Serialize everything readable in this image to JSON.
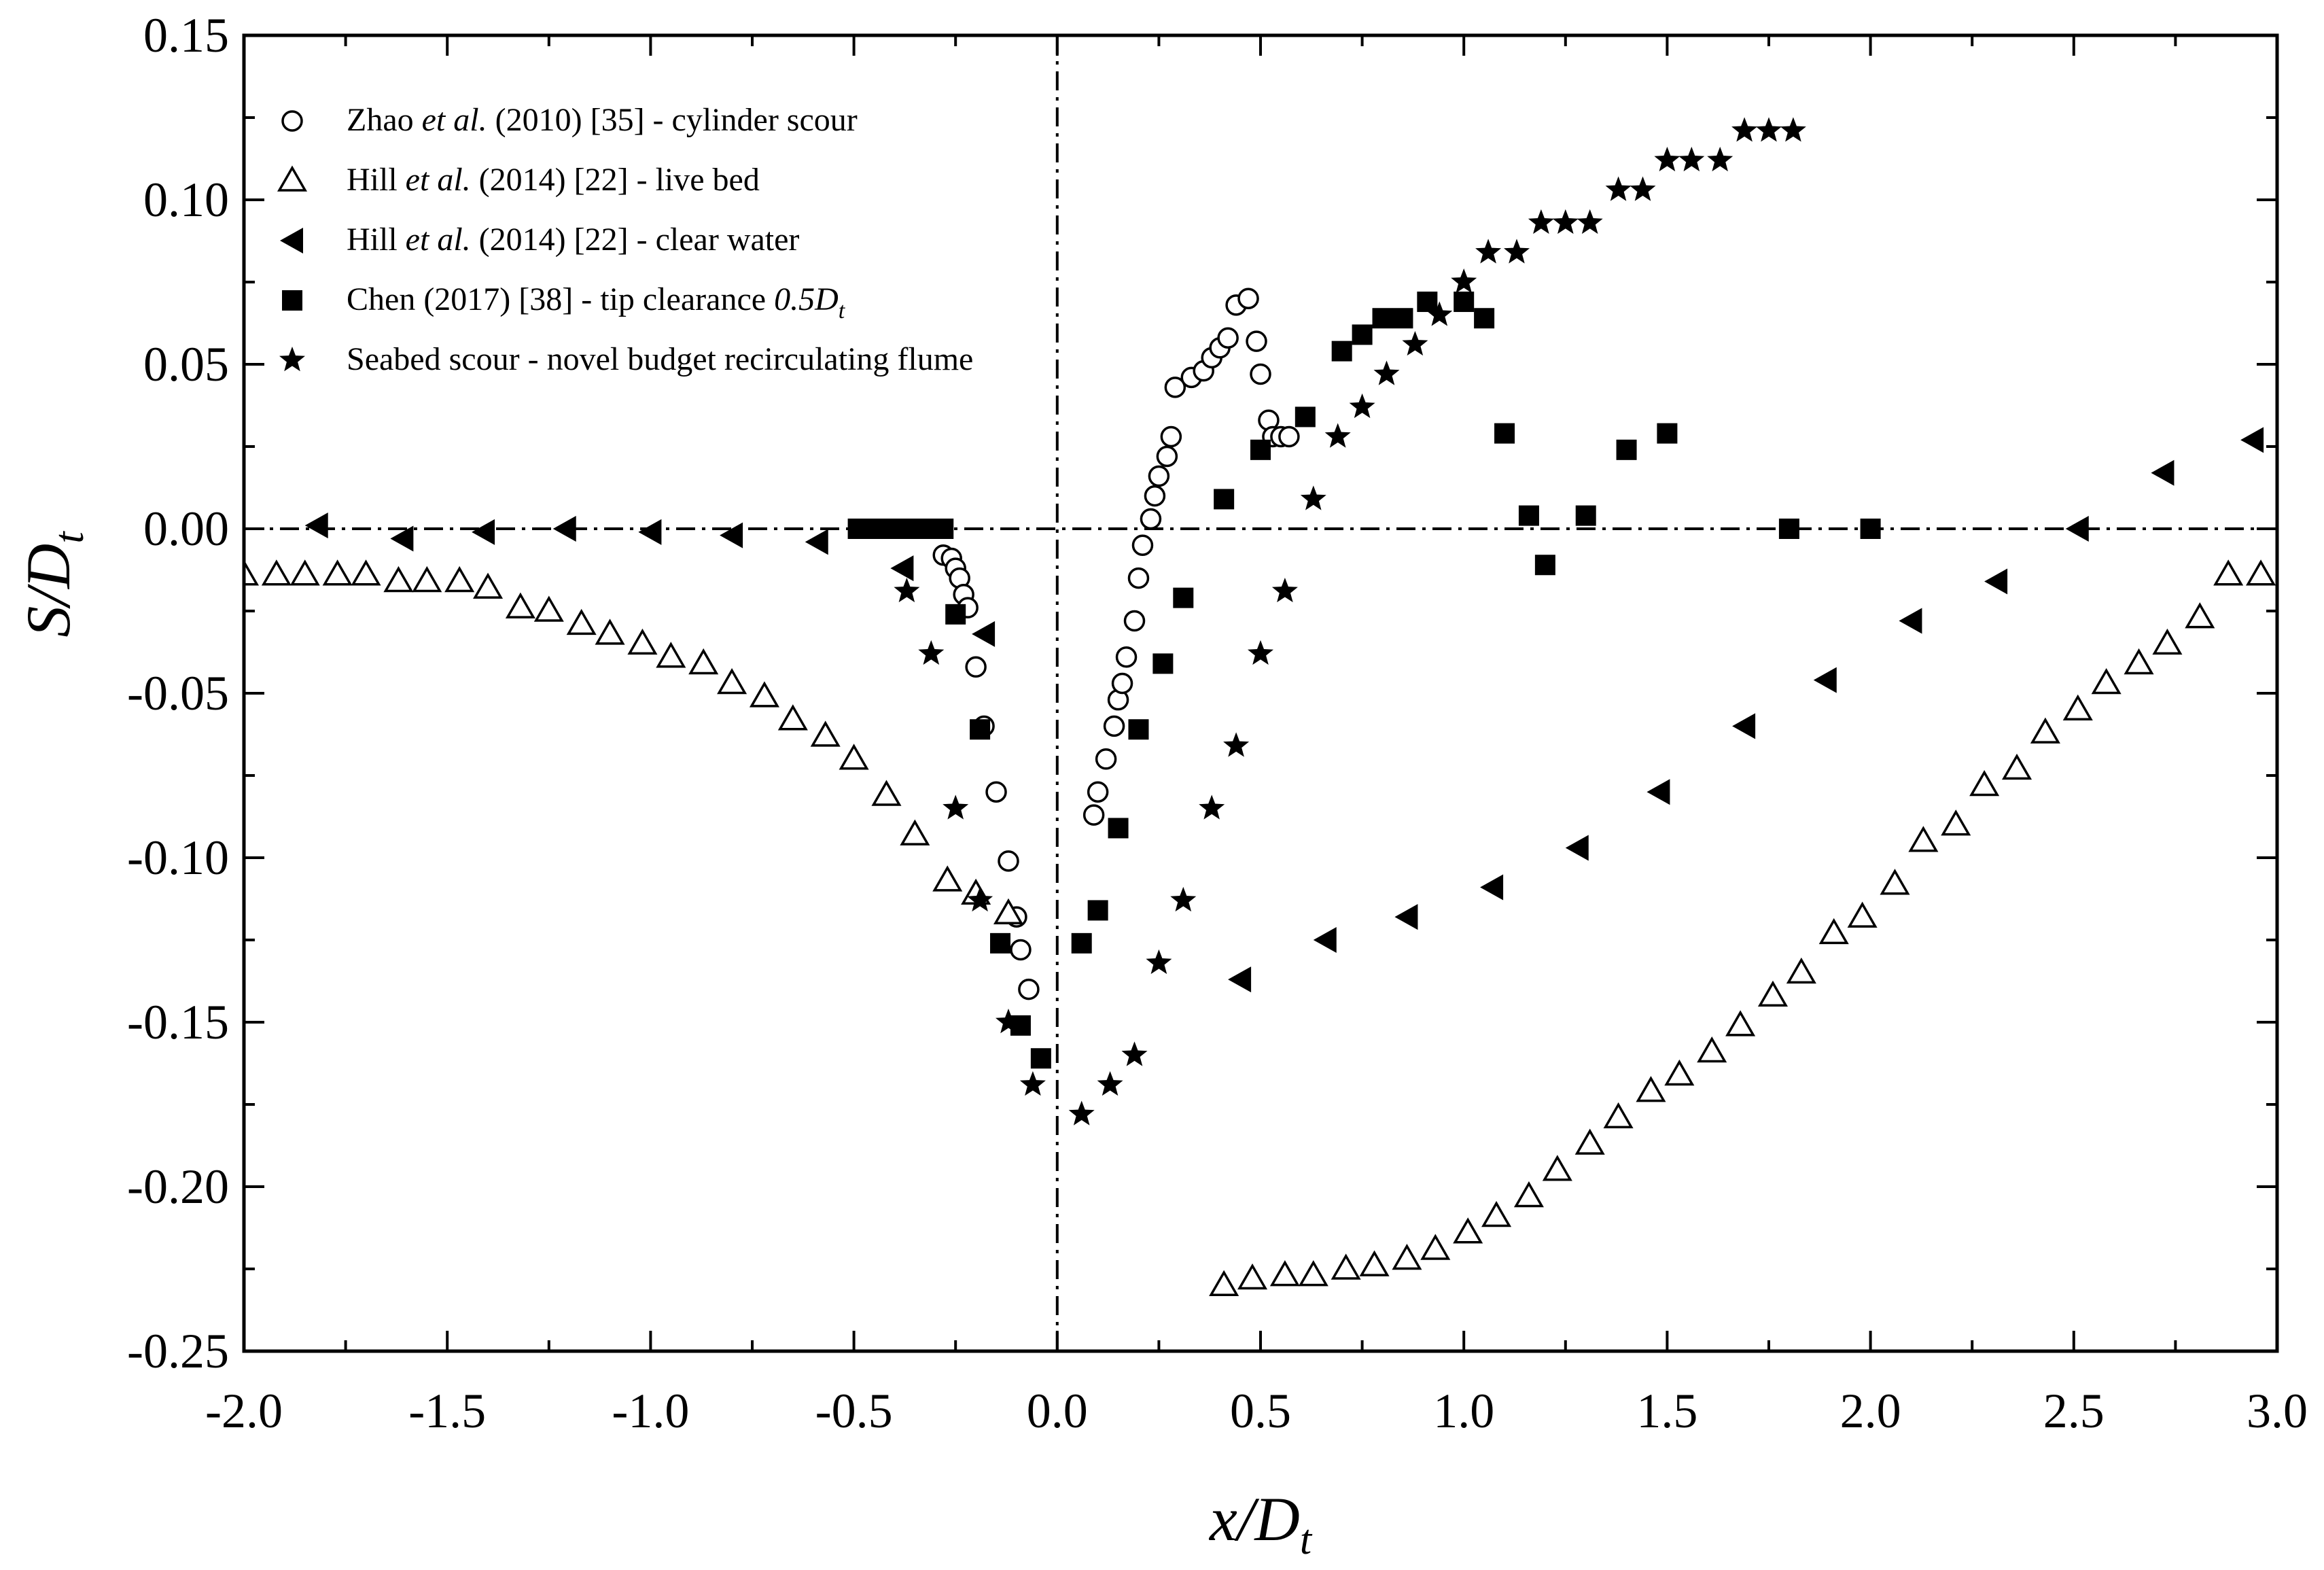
{
  "chart_data": {
    "type": "scatter",
    "title": "",
    "xlabel": "x/D_t",
    "ylabel": "S/D_t",
    "xlabel_parts": {
      "pre": "x/",
      "main": "D",
      "sub": "t"
    },
    "ylabel_parts": {
      "pre": "S/",
      "main": "D",
      "sub": "t"
    },
    "xlim": [
      -2.0,
      3.0
    ],
    "ylim": [
      -0.25,
      0.15
    ],
    "x_ticks": [
      -2.0,
      -1.5,
      -1.0,
      -0.5,
      0.0,
      0.5,
      1.0,
      1.5,
      2.0,
      2.5,
      3.0
    ],
    "x_tick_labels": [
      "-2.0",
      "-1.5",
      "-1.0",
      "-0.5",
      "0.0",
      "0.5",
      "1.0",
      "1.5",
      "2.0",
      "2.5",
      "3.0"
    ],
    "y_ticks": [
      -0.25,
      -0.2,
      -0.15,
      -0.1,
      -0.05,
      0.0,
      0.05,
      0.1,
      0.15
    ],
    "y_tick_labels": [
      "-0.25",
      "-0.20",
      "-0.15",
      "-0.10",
      "-0.05",
      "0.00",
      "0.05",
      "0.10",
      "0.15"
    ],
    "grid": false,
    "reference_lines": {
      "x": 0,
      "y": 0,
      "style": "dash-dot"
    },
    "legend_position": "top-left",
    "series": [
      {
        "name": "Zhao et al. (2010) [35] - cylinder scour",
        "legend_parts": [
          "Zhao ",
          "et al.",
          " (2010) [35] - cylinder scour"
        ],
        "marker": "open-circle",
        "x": [
          -0.28,
          -0.26,
          -0.25,
          -0.24,
          -0.23,
          -0.22,
          -0.2,
          -0.18,
          -0.15,
          -0.12,
          -0.1,
          -0.09,
          -0.07,
          0.09,
          0.1,
          0.12,
          0.14,
          0.15,
          0.16,
          0.17,
          0.19,
          0.2,
          0.21,
          0.23,
          0.24,
          0.25,
          0.27,
          0.28,
          0.29,
          0.33,
          0.36,
          0.38,
          0.4,
          0.42,
          0.44,
          0.47,
          0.49,
          0.5,
          0.52,
          0.53,
          0.55,
          0.57
        ],
        "y": [
          -0.008,
          -0.009,
          -0.012,
          -0.015,
          -0.02,
          -0.024,
          -0.042,
          -0.06,
          -0.08,
          -0.101,
          -0.118,
          -0.128,
          -0.14,
          -0.087,
          -0.08,
          -0.07,
          -0.06,
          -0.052,
          -0.047,
          -0.039,
          -0.028,
          -0.015,
          -0.005,
          0.003,
          0.01,
          0.016,
          0.022,
          0.028,
          0.043,
          0.046,
          0.048,
          0.052,
          0.055,
          0.058,
          0.068,
          0.07,
          0.057,
          0.047,
          0.033,
          0.028,
          0.028,
          0.028
        ]
      },
      {
        "name": "Hill et al. (2014) [22] - live bed",
        "legend_parts": [
          "Hill ",
          "et al.",
          " (2014) [22] - live bed"
        ],
        "marker": "open-triangle-up",
        "x": [
          -2.0,
          -1.92,
          -1.85,
          -1.77,
          -1.7,
          -1.62,
          -1.55,
          -1.47,
          -1.4,
          -1.32,
          -1.25,
          -1.17,
          -1.1,
          -1.02,
          -0.95,
          -0.87,
          -0.8,
          -0.72,
          -0.65,
          -0.57,
          -0.5,
          -0.42,
          -0.35,
          -0.27,
          -0.2,
          -0.12,
          0.41,
          0.48,
          0.56,
          0.63,
          0.71,
          0.78,
          0.86,
          0.93,
          1.01,
          1.08,
          1.16,
          1.23,
          1.31,
          1.38,
          1.46,
          1.53,
          1.61,
          1.68,
          1.76,
          1.83,
          1.91,
          1.98,
          2.06,
          2.13,
          2.21,
          2.28,
          2.36,
          2.43,
          2.51,
          2.58,
          2.66,
          2.73,
          2.81,
          2.88,
          2.96
        ],
        "y": [
          -0.014,
          -0.014,
          -0.014,
          -0.014,
          -0.014,
          -0.016,
          -0.016,
          -0.016,
          -0.018,
          -0.024,
          -0.025,
          -0.029,
          -0.032,
          -0.035,
          -0.039,
          -0.041,
          -0.047,
          -0.051,
          -0.058,
          -0.063,
          -0.07,
          -0.081,
          -0.093,
          -0.107,
          -0.111,
          -0.117,
          -0.23,
          -0.228,
          -0.227,
          -0.227,
          -0.225,
          -0.224,
          -0.222,
          -0.219,
          -0.214,
          -0.209,
          -0.203,
          -0.195,
          -0.187,
          -0.179,
          -0.171,
          -0.166,
          -0.159,
          -0.151,
          -0.142,
          -0.135,
          -0.123,
          -0.118,
          -0.108,
          -0.095,
          -0.09,
          -0.078,
          -0.073,
          -0.062,
          -0.055,
          -0.047,
          -0.041,
          -0.035,
          -0.027,
          -0.014,
          -0.014
        ]
      },
      {
        "name": "Hill et al. (2014) [22] - clear water",
        "legend_parts": [
          "Hill ",
          "et al.",
          " (2014) [22] - clear water"
        ],
        "marker": "filled-triangle-left",
        "x": [
          -1.82,
          -1.61,
          -1.41,
          -1.21,
          -1.0,
          -0.8,
          -0.59,
          -0.38,
          -0.18,
          0.45,
          0.66,
          0.86,
          1.07,
          1.28,
          1.48,
          1.69,
          1.89,
          2.1,
          2.31,
          2.51,
          2.72,
          2.94
        ],
        "y": [
          0.001,
          -0.003,
          -0.001,
          0.0,
          -0.001,
          -0.002,
          -0.004,
          -0.012,
          -0.032,
          -0.137,
          -0.125,
          -0.118,
          -0.109,
          -0.097,
          -0.08,
          -0.06,
          -0.046,
          -0.028,
          -0.016,
          0.0,
          0.017,
          0.027
        ]
      },
      {
        "name": "Chen (2017) [38] - tip clearance 0.5Dt",
        "legend_parts": [
          "Chen (2017) [38] - tip clearance ",
          "0.5D",
          "t"
        ],
        "marker": "filled-square",
        "x": [
          -0.49,
          -0.44,
          -0.39,
          -0.35,
          -0.31,
          -0.28,
          -0.25,
          -0.19,
          -0.14,
          -0.09,
          -0.04,
          0.06,
          0.1,
          0.15,
          0.2,
          0.26,
          0.31,
          0.41,
          0.5,
          0.61,
          0.7,
          0.75,
          0.8,
          0.85,
          0.91,
          1.0,
          1.05,
          1.1,
          1.16,
          1.2,
          1.3,
          1.4,
          1.5,
          1.8,
          2.0
        ],
        "y": [
          0.0,
          0.0,
          0.0,
          0.0,
          0.0,
          0.0,
          -0.026,
          -0.061,
          -0.126,
          -0.151,
          -0.161,
          -0.126,
          -0.116,
          -0.091,
          -0.061,
          -0.041,
          -0.021,
          0.009,
          0.024,
          0.034,
          0.054,
          0.059,
          0.064,
          0.064,
          0.069,
          0.069,
          0.064,
          0.029,
          0.004,
          -0.011,
          0.004,
          0.024,
          0.029,
          0.0,
          0.0
        ]
      },
      {
        "name": "Seabed scour - novel budget recirculating flume",
        "legend_parts": [
          "Seabed scour - novel budget recirculating flume"
        ],
        "marker": "filled-star",
        "x": [
          -0.37,
          -0.31,
          -0.25,
          -0.19,
          -0.12,
          -0.06,
          0.06,
          0.13,
          0.19,
          0.25,
          0.31,
          0.38,
          0.44,
          0.5,
          0.56,
          0.63,
          0.69,
          0.75,
          0.81,
          0.88,
          0.94,
          1.0,
          1.06,
          1.13,
          1.19,
          1.25,
          1.31,
          1.38,
          1.44,
          1.5,
          1.56,
          1.63,
          1.69,
          1.75,
          1.81
        ],
        "y": [
          -0.019,
          -0.038,
          -0.085,
          -0.113,
          -0.15,
          -0.169,
          -0.178,
          -0.169,
          -0.16,
          -0.132,
          -0.113,
          -0.085,
          -0.066,
          -0.038,
          -0.019,
          0.009,
          0.028,
          0.037,
          0.047,
          0.056,
          0.065,
          0.075,
          0.084,
          0.084,
          0.093,
          0.093,
          0.093,
          0.103,
          0.103,
          0.112,
          0.112,
          0.112,
          0.121,
          0.121,
          0.121
        ]
      }
    ]
  }
}
